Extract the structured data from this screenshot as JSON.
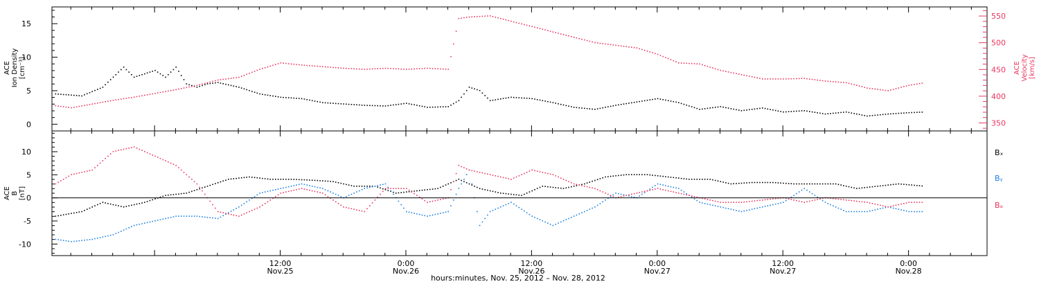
{
  "chart_data": {
    "type": "scatter",
    "xlabel": "hours:minutes, Nov. 25, 2012 – Nov. 28, 2012",
    "x_range_hours": [
      -9.8,
      79.5
    ],
    "x_ticks": [
      {
        "hour": 12,
        "time": "12:00",
        "date": "Nov.25"
      },
      {
        "hour": 24,
        "time": "0:00",
        "date": "Nov.26"
      },
      {
        "hour": 36,
        "time": "12:00",
        "date": "Nov.26"
      },
      {
        "hour": 48,
        "time": "0:00",
        "date": "Nov.27"
      },
      {
        "hour": 60,
        "time": "12:00",
        "date": "Nov.27"
      },
      {
        "hour": 72,
        "time": "0:00",
        "date": "Nov.28"
      }
    ],
    "colors": {
      "black": "#000000",
      "pink": "#e8365f",
      "blue": "#1a7fe0"
    },
    "panels": [
      {
        "id": "plasma",
        "left_axis": {
          "label_lines": [
            "ACE",
            "Ion Density",
            "[cm⁻³]"
          ],
          "range": [
            -1,
            17.5
          ],
          "ticks": [
            "0",
            "5",
            "10",
            "15"
          ],
          "tick_values": [
            0,
            5,
            10,
            15
          ]
        },
        "right_axis": {
          "label_lines": [
            "ACE",
            "Velocity",
            "[km/s]"
          ],
          "range": [
            335,
            567
          ],
          "ticks": [
            "350",
            "400",
            "450",
            "500",
            "550"
          ],
          "tick_values": [
            350,
            400,
            450,
            500,
            550
          ],
          "color": "#e8365f"
        },
        "series": [
          {
            "axis": "left",
            "color": "#000000",
            "x": [
              -9.5,
              -7,
              -5,
              -4,
              -3,
              -2,
              -1,
              0,
              1,
              2,
              3,
              4,
              5,
              6,
              8,
              10,
              12,
              14,
              16,
              18,
              20,
              22,
              24,
              26,
              28,
              29,
              30,
              31,
              32,
              34,
              36,
              38,
              40,
              42,
              44,
              46,
              48,
              50,
              52,
              54,
              56,
              58,
              60,
              62,
              64,
              66,
              68,
              70,
              72,
              73.5
            ],
            "y": [
              4.5,
              4.2,
              5.5,
              7,
              8.5,
              7,
              7.5,
              8,
              7,
              8.5,
              6,
              5.5,
              6,
              6.2,
              5.5,
              4.5,
              4,
              3.8,
              3.2,
              3,
              2.8,
              2.7,
              3.1,
              2.5,
              2.6,
              3.5,
              5.5,
              5,
              3.5,
              4,
              3.8,
              3.2,
              2.5,
              2.2,
              2.8,
              3.3,
              3.8,
              3.2,
              2.2,
              2.6,
              2,
              2.4,
              1.8,
              2,
              1.5,
              1.8,
              1.2,
              1.5,
              1.7,
              1.8
            ]
          },
          {
            "axis": "right",
            "color": "#e8365f",
            "x": [
              -9.5,
              -8,
              -6,
              -4,
              -2,
              0,
              2,
              4,
              6,
              8,
              10,
              12,
              14,
              16,
              18,
              20,
              22,
              24,
              26,
              28,
              29,
              30,
              32,
              34,
              36,
              38,
              40,
              42,
              44,
              46,
              48,
              50,
              52,
              54,
              56,
              58,
              60,
              62,
              64,
              66,
              68,
              70,
              72,
              73.5
            ],
            "y": [
              382,
              378,
              385,
              392,
              398,
              405,
              412,
              420,
              430,
              435,
              450,
              462,
              458,
              455,
              452,
              450,
              452,
              450,
              452,
              450,
              545,
              548,
              550,
              540,
              530,
              520,
              510,
              500,
              495,
              490,
              478,
              462,
              460,
              448,
              440,
              432,
              432,
              433,
              428,
              425,
              415,
              410,
              420,
              425
            ]
          }
        ]
      },
      {
        "id": "field",
        "left_axis": {
          "label_lines": [
            "ACE",
            "B",
            "[nT]"
          ],
          "range": [
            -12.5,
            14.5
          ],
          "ticks": [
            "-10",
            "-5",
            "0",
            "5",
            "10"
          ],
          "tick_values": [
            -10,
            -5,
            0,
            5,
            10
          ]
        },
        "legend": [
          "Bₓ",
          "Bᵧ",
          "Bₔ"
        ],
        "legend_colors": [
          "#000000",
          "#1a7fe0",
          "#e8365f"
        ],
        "series": [
          {
            "name": "Bx",
            "color": "#000000",
            "x": [
              -9.5,
              -7,
              -5,
              -3,
              -1,
              1,
              3,
              5,
              7,
              9,
              11,
              13,
              15,
              17,
              19,
              21,
              23,
              25,
              27,
              29,
              31,
              33,
              35,
              37,
              39,
              41,
              43,
              45,
              47,
              49,
              51,
              53,
              55,
              57,
              59,
              61,
              63,
              65,
              67,
              69,
              71,
              73.5
            ],
            "y": [
              -4,
              -3,
              -1,
              -2,
              -1,
              0.5,
              1,
              2.5,
              4,
              4.5,
              4,
              4,
              3.8,
              3.5,
              2.5,
              2.5,
              1,
              1.5,
              2,
              4,
              2,
              1,
              0.5,
              2.5,
              2,
              3,
              4.5,
              5,
              5,
              4.5,
              4,
              4,
              3,
              3.3,
              3.3,
              3,
              3,
              3,
              2,
              2.5,
              3,
              2.5
            ]
          },
          {
            "name": "By",
            "color": "#1a7fe0",
            "x": [
              -9.5,
              -8,
              -6,
              -4,
              -2,
              0,
              2,
              4,
              6,
              8,
              10,
              12,
              14,
              16,
              18,
              20,
              22,
              24,
              26,
              28,
              29,
              30,
              31,
              32,
              34,
              36,
              38,
              40,
              42,
              44,
              46,
              48,
              50,
              52,
              54,
              56,
              58,
              60,
              62,
              64,
              66,
              68,
              70,
              72,
              73.5
            ],
            "y": [
              -9,
              -9.5,
              -9,
              -8,
              -6,
              -5,
              -4,
              -4,
              -4.5,
              -2,
              1,
              2,
              3,
              2,
              0,
              2,
              3,
              -3,
              -4,
              -3,
              2,
              6,
              -6,
              -3,
              -1,
              -4,
              -6,
              -4,
              -2,
              1,
              0,
              3,
              2,
              -1,
              -2,
              -3,
              -2,
              -1,
              2,
              -1,
              -3,
              -3,
              -2,
              -3,
              -3
            ]
          },
          {
            "name": "Bz",
            "color": "#e8365f",
            "x": [
              -9.5,
              -8,
              -6,
              -4,
              -2,
              0,
              2,
              4,
              6,
              8,
              10,
              12,
              14,
              16,
              18,
              20,
              22,
              24,
              26,
              28,
              29,
              30,
              32,
              34,
              36,
              38,
              40,
              42,
              44,
              46,
              48,
              50,
              52,
              54,
              56,
              58,
              60,
              62,
              64,
              66,
              68,
              70,
              72,
              73.5
            ],
            "y": [
              3,
              5,
              6,
              10,
              11,
              9,
              7,
              3,
              -3,
              -4,
              -2,
              1,
              2,
              1,
              -2,
              -3,
              2,
              2,
              -1,
              0,
              7,
              6,
              5,
              4,
              6,
              5,
              3,
              2,
              0,
              1,
              2,
              1,
              0,
              -1,
              -1,
              -0.5,
              0,
              -1,
              0,
              -0.5,
              -1,
              -2,
              -1,
              -1
            ]
          }
        ]
      }
    ]
  }
}
